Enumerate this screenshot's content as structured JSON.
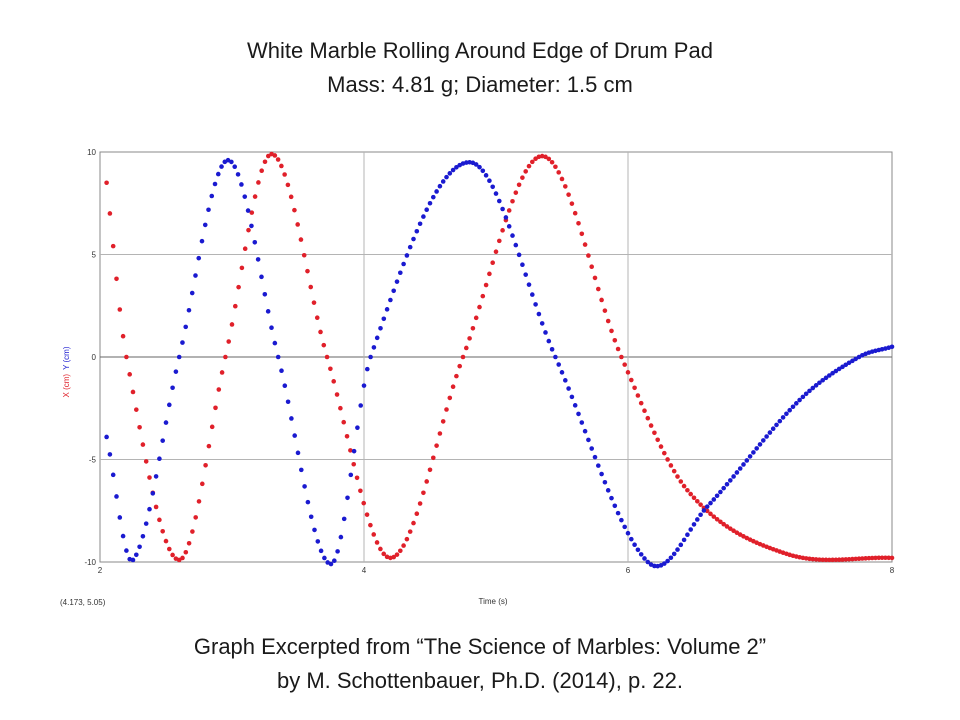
{
  "title": {
    "line1": "White Marble Rolling Around Edge of Drum Pad",
    "line2": "Mass: 4.81 g; Diameter: 1.5 cm"
  },
  "caption": {
    "line1": "Graph Excerpted from “The Science of Marbles: Volume 2”",
    "line2": "by M. Schottenbauer, Ph.D. (2014), p. 22."
  },
  "chart_data": {
    "type": "scatter",
    "xlabel": "Time (s)",
    "ylabel_parts": [
      {
        "text": "X (cm)",
        "color": "#e0202a"
      },
      {
        "text": "Y (cm)",
        "color": "#1a1ad0"
      }
    ],
    "xlim": [
      2,
      8
    ],
    "ylim": [
      -10,
      10
    ],
    "x_ticks": [
      2,
      4,
      6,
      8
    ],
    "y_ticks": [
      10,
      5,
      0,
      -5,
      -10
    ],
    "grid": true,
    "corner_readout": "(4.173, 5.05)",
    "series": [
      {
        "name": "X (cm)",
        "color": "#e0202a",
        "points": [
          [
            2.05,
            8.5
          ],
          [
            2.2,
            0
          ],
          [
            2.6,
            -9.9
          ],
          [
            2.95,
            0
          ],
          [
            3.3,
            9.9
          ],
          [
            3.72,
            0
          ],
          [
            4.2,
            -9.8
          ],
          [
            4.75,
            0
          ],
          [
            5.35,
            9.8
          ],
          [
            5.95,
            0
          ],
          [
            6.45,
            -6.5
          ],
          [
            7.2,
            -9.6
          ],
          [
            8.0,
            -9.8
          ]
        ]
      },
      {
        "name": "Y (cm)",
        "color": "#1a1ad0",
        "points": [
          [
            2.05,
            -3.9
          ],
          [
            2.25,
            -9.9
          ],
          [
            2.6,
            0
          ],
          [
            2.97,
            9.6
          ],
          [
            3.35,
            0
          ],
          [
            3.75,
            -10.1
          ],
          [
            4.05,
            0
          ],
          [
            4.8,
            9.5
          ],
          [
            5.45,
            0
          ],
          [
            6.15,
            -10.0
          ],
          [
            6.6,
            -7.3
          ],
          [
            7.3,
            -2.1
          ],
          [
            7.75,
            0
          ],
          [
            8.0,
            0.5
          ]
        ]
      }
    ]
  }
}
